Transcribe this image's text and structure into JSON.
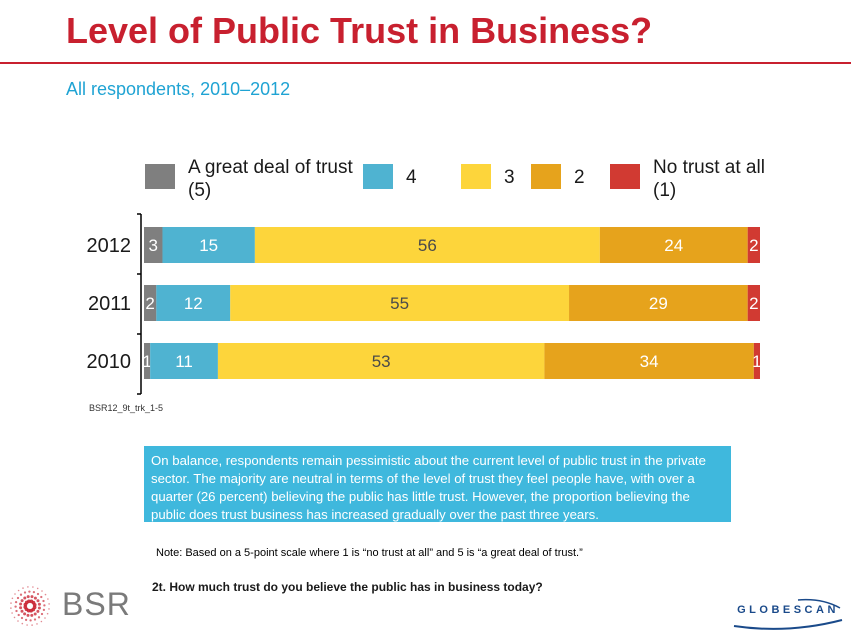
{
  "page": {
    "title": "Level of Public Trust in Business?",
    "subtitle": "All respondents, 2010–2012"
  },
  "chart_data": {
    "type": "bar",
    "orientation": "horizontal",
    "stacked": true,
    "title": "",
    "xlabel": "",
    "ylabel": "",
    "xlim": [
      0,
      100
    ],
    "categories": [
      "2012",
      "2011",
      "2010"
    ],
    "series": [
      {
        "name": "A great deal of trust (5)",
        "color": "#7f7f7f",
        "values": [
          3,
          2,
          1
        ]
      },
      {
        "name": "4",
        "color": "#4fb3d1",
        "values": [
          15,
          12,
          11
        ]
      },
      {
        "name": "3",
        "color": "#fdd53b",
        "values": [
          56,
          55,
          53
        ]
      },
      {
        "name": "2",
        "color": "#e6a31c",
        "values": [
          24,
          29,
          34
        ]
      },
      {
        "name": "No trust at all (1)",
        "color": "#d13a32",
        "values": [
          2,
          2,
          1
        ]
      }
    ],
    "legend": {
      "placement": "top",
      "entries": [
        {
          "lines": [
            "A great deal of trust",
            "(5)"
          ],
          "color": "#7f7f7f"
        },
        {
          "lines": [
            "4"
          ],
          "color": "#4fb3d1"
        },
        {
          "lines": [
            "3"
          ],
          "color": "#fdd53b"
        },
        {
          "lines": [
            "2"
          ],
          "color": "#e6a31c"
        },
        {
          "lines": [
            "No trust at all",
            "(1)"
          ],
          "color": "#d13a32"
        }
      ]
    },
    "source_code": "BSR12_9t_trk_1-5",
    "grid": false
  },
  "callout": {
    "text": "On balance, respondents remain pessimistic about the current level of public trust in the private sector. The majority are neutral in terms of the level of trust they feel people have, with over a quarter (26 percent) believing the public has little trust. However, the proportion believing the public does trust business has increased gradually over the past three years."
  },
  "note": "Note: Based on a 5-point scale where 1 is “no trust at all” and 5 is “a great deal of trust.”",
  "question": "2t. How much trust do you believe the public has in business today?",
  "logos": {
    "bsr": {
      "text": "BSR",
      "icon": "sunburst-dots-icon",
      "color": "#c8202f"
    },
    "globescan": {
      "text": "GLOBESCAN",
      "color": "#1a4a8a"
    }
  }
}
